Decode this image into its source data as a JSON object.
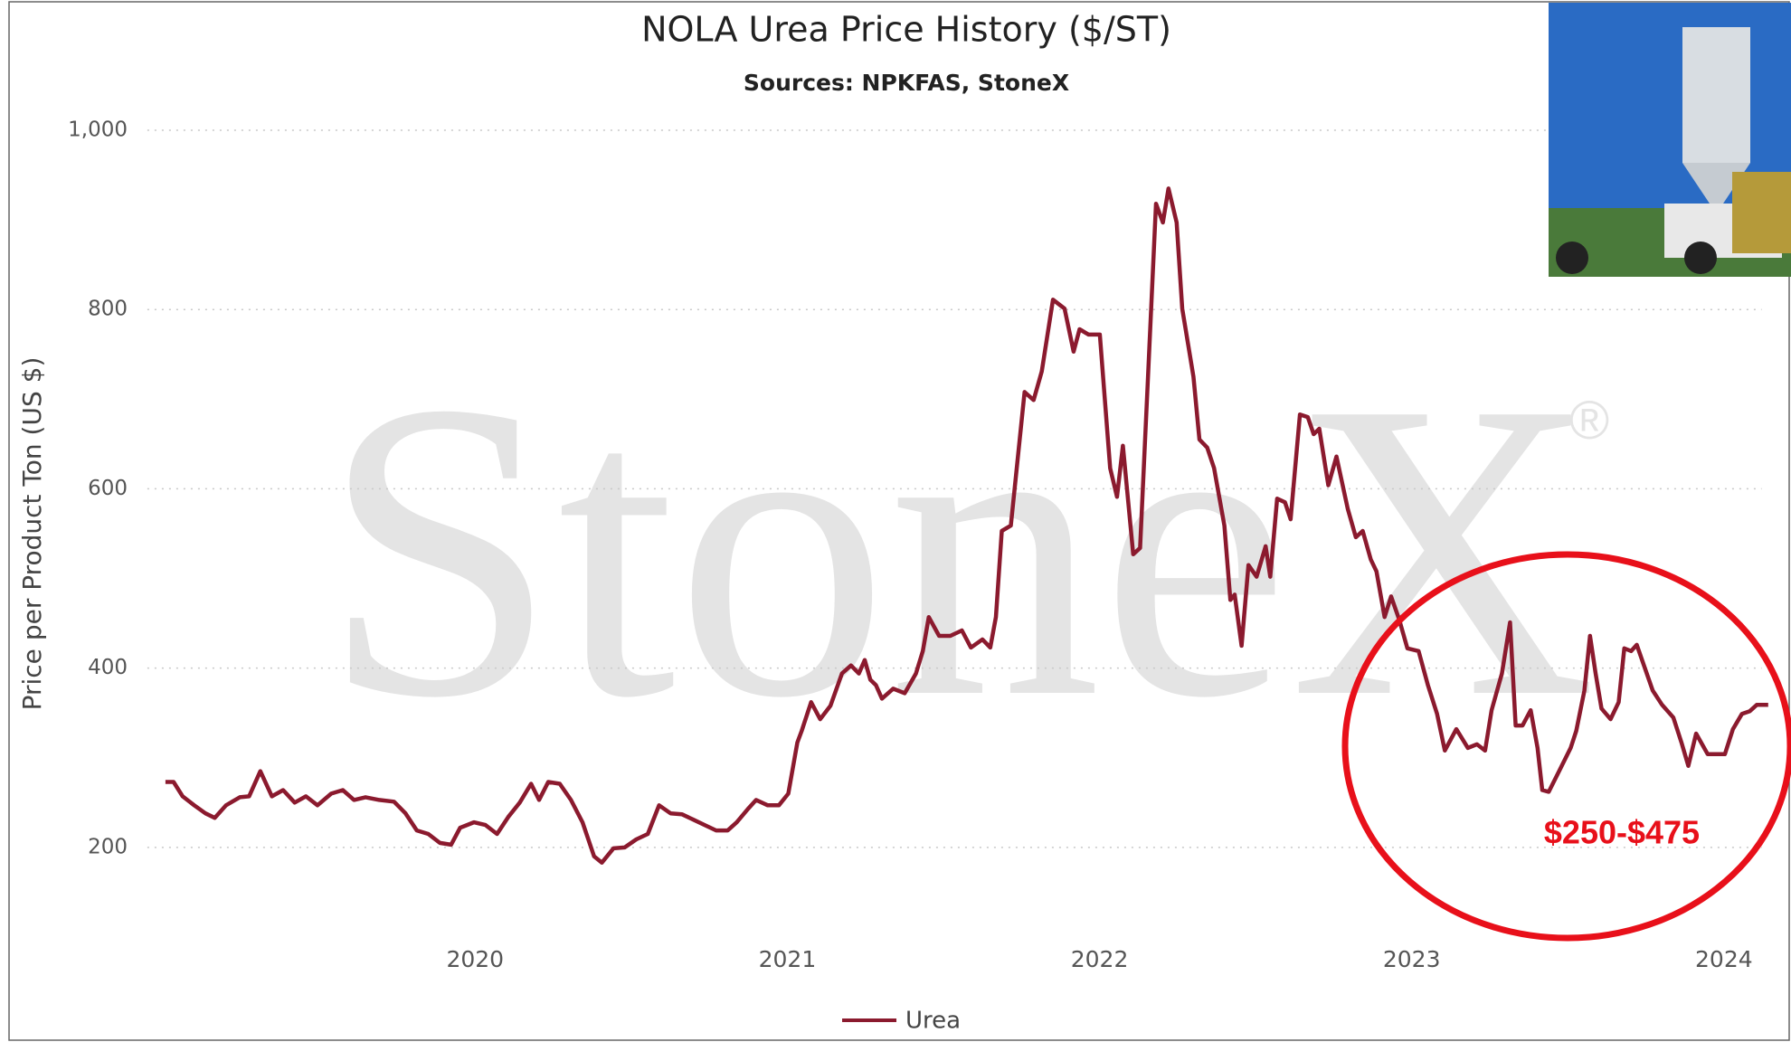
{
  "chart_data": {
    "type": "line",
    "title": "NOLA Urea Price History ($/ST)",
    "subtitle": "Sources: NPKFAS, StoneX",
    "y_label": "Price per Product Ton (US $)",
    "watermark": "StoneX",
    "watermark_symbol": "®",
    "annotation": "$250-$475",
    "grid": true,
    "legend": "bottom",
    "xlim": [
      2018.95,
      2024.15
    ],
    "xticks": [
      2020,
      2021,
      2022,
      2023,
      2024
    ],
    "ylim": [
      100,
      1050
    ],
    "yticks": [
      {
        "value": 200,
        "label": "200"
      },
      {
        "value": 400,
        "label": "400"
      },
      {
        "value": 600,
        "label": "600"
      },
      {
        "value": 800,
        "label": "800"
      },
      {
        "value": 1000,
        "label": "1,000"
      }
    ],
    "x": [
      2019.008,
      2019.034,
      2019.063,
      2019.1,
      2019.136,
      2019.166,
      2019.202,
      2019.246,
      2019.276,
      2019.312,
      2019.349,
      2019.385,
      2019.422,
      2019.458,
      2019.495,
      2019.539,
      2019.576,
      2019.612,
      2019.649,
      2019.693,
      2019.74,
      2019.777,
      2019.813,
      2019.85,
      2019.887,
      2019.923,
      2019.952,
      2019.996,
      2020.033,
      2020.07,
      2020.106,
      2020.143,
      2020.179,
      2020.205,
      2020.234,
      2020.271,
      2020.307,
      2020.344,
      2020.381,
      2020.406,
      2020.443,
      2020.479,
      2020.516,
      2020.553,
      2020.589,
      2020.626,
      2020.662,
      2020.699,
      2020.735,
      2020.772,
      2020.809,
      2020.838,
      2020.874,
      2020.9,
      2020.937,
      2020.973,
      2021.003,
      2021.032,
      2021.046,
      2021.076,
      2021.105,
      2021.138,
      2021.175,
      2021.204,
      2021.229,
      2021.248,
      2021.266,
      2021.284,
      2021.303,
      2021.339,
      2021.376,
      2021.412,
      2021.434,
      2021.453,
      2021.486,
      2021.522,
      2021.559,
      2021.588,
      2021.625,
      2021.65,
      2021.668,
      2021.687,
      2021.716,
      2021.76,
      2021.789,
      2021.815,
      2021.851,
      2021.888,
      2021.917,
      2021.936,
      2021.965,
      2022.001,
      2022.034,
      2022.056,
      2022.075,
      2022.108,
      2022.13,
      2022.181,
      2022.203,
      2022.221,
      2022.247,
      2022.265,
      2022.301,
      2022.32,
      2022.345,
      2022.367,
      2022.4,
      2022.419,
      2022.433,
      2022.455,
      2022.477,
      2022.503,
      2022.532,
      2022.547,
      2022.569,
      2022.594,
      2022.612,
      2022.642,
      2022.667,
      2022.686,
      2022.704,
      2022.733,
      2022.759,
      2022.795,
      2022.821,
      2022.843,
      2022.869,
      2022.887,
      2022.913,
      2022.934,
      2022.96,
      2022.986,
      2023.022,
      2023.052,
      2023.081,
      2023.106,
      2023.143,
      2023.18,
      2023.209,
      2023.235,
      2023.256,
      2023.289,
      2023.315,
      2023.333,
      2023.355,
      2023.381,
      2023.403,
      2023.418,
      2023.439,
      2023.472,
      2023.509,
      2023.527,
      2023.553,
      2023.571,
      2023.589,
      2023.608,
      2023.637,
      2023.663,
      2023.681,
      2023.703,
      2023.721,
      2023.747,
      2023.772,
      2023.802,
      2023.838,
      2023.864,
      2023.886,
      2023.911,
      2023.948,
      2024.003,
      2024.029,
      2024.058,
      2024.083,
      2024.105,
      2024.142
    ],
    "series": [
      {
        "name": "Urea",
        "color": "#8b1a2e",
        "values": [
          273,
          273,
          257,
          247,
          238,
          233,
          247,
          256,
          257,
          285,
          257,
          264,
          250,
          257,
          247,
          260,
          264,
          253,
          256,
          253,
          251,
          238,
          219,
          215,
          205,
          203,
          222,
          228,
          225,
          215,
          234,
          250,
          271,
          253,
          273,
          271,
          253,
          228,
          190,
          183,
          199,
          200,
          209,
          215,
          247,
          238,
          237,
          231,
          225,
          219,
          219,
          228,
          243,
          253,
          247,
          247,
          260,
          317,
          330,
          362,
          343,
          358,
          394,
          403,
          394,
          409,
          387,
          381,
          366,
          377,
          372,
          394,
          419,
          457,
          436,
          436,
          442,
          423,
          432,
          423,
          457,
          553,
          559,
          708,
          699,
          731,
          811,
          801,
          753,
          778,
          772,
          772,
          623,
          591,
          648,
          527,
          534,
          918,
          897,
          935,
          897,
          801,
          725,
          655,
          646,
          623,
          559,
          476,
          482,
          425,
          515,
          502,
          536,
          502,
          589,
          585,
          566,
          683,
          680,
          661,
          667,
          604,
          636,
          578,
          546,
          553,
          521,
          508,
          457,
          480,
          454,
          422,
          419,
          381,
          349,
          308,
          332,
          311,
          315,
          308,
          353,
          394,
          451,
          336,
          336,
          353,
          311,
          264,
          262,
          285,
          311,
          330,
          375,
          436,
          394,
          355,
          343,
          362,
          422,
          419,
          426,
          400,
          375,
          359,
          345,
          317,
          291,
          327,
          304,
          304,
          332,
          349,
          352,
          359,
          359
        ]
      }
    ]
  }
}
